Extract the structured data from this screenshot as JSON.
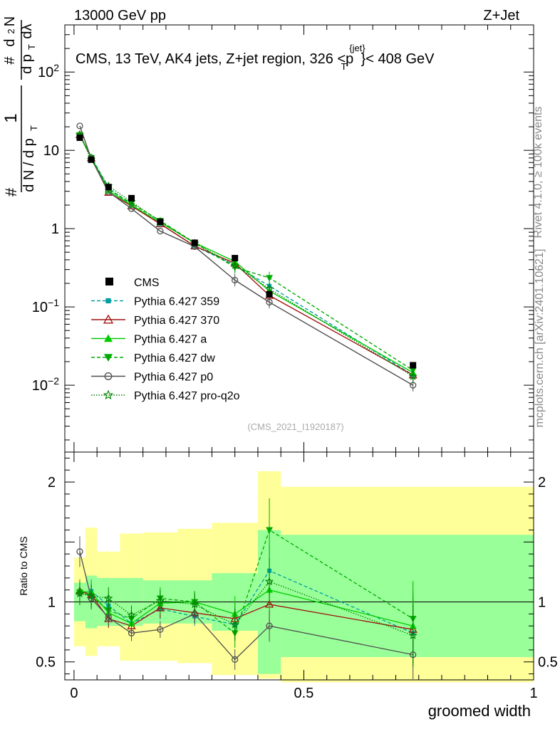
{
  "header": {
    "energy": "13000 GeV pp",
    "process": "Z+Jet"
  },
  "side": {
    "rivet": "Rivet 4.1.0, ≥ 100k events",
    "mcplots": "mcplots.cern.ch [arXiv:2401.10621]"
  },
  "chart_data": [
    {
      "type": "scatter",
      "title_prefix": "CMS, 13 TeV, AK4 jets, Z+jet region, 326 <p",
      "title_sup": "{jet}",
      "title_sub": "T",
      "title_suffix": "}< 408 GeV",
      "ylabel": "1/dN/dpT · dN²/dpT dλ",
      "yscale": "log",
      "ylim": [
        0.0014,
        400
      ],
      "xlim": [
        -0.02,
        1.0
      ],
      "yticks": [
        {
          "v": 0.01,
          "base": "10",
          "exp": "−2"
        },
        {
          "v": 0.1,
          "base": "10",
          "exp": "−1"
        },
        {
          "v": 1,
          "base": "1",
          "exp": ""
        },
        {
          "v": 10,
          "base": "10",
          "exp": ""
        },
        {
          "v": 100,
          "base": "10",
          "exp": "2"
        }
      ],
      "watermark": "(CMS_2021_I1920187)",
      "x": [
        0.0125,
        0.0375,
        0.075,
        0.125,
        0.1875,
        0.2625,
        0.35,
        0.425,
        0.7375
      ],
      "data": {
        "name": "CMS",
        "values": [
          14.5,
          7.6,
          3.4,
          2.45,
          1.22,
          0.66,
          0.42,
          0.145,
          0.018
        ]
      },
      "series": [
        {
          "name": "Pythia 6.427 359",
          "color": "#00a0a0",
          "dash": "5,3",
          "marker": "square",
          "values": [
            15.5,
            8.3,
            3.3,
            2.0,
            1.15,
            0.6,
            0.34,
            0.185,
            0.0135
          ]
        },
        {
          "name": "Pythia 6.427 370",
          "color": "#a01010",
          "dash": "",
          "marker": "triangle-open",
          "values": [
            15.8,
            8.0,
            2.9,
            1.95,
            1.15,
            0.6,
            0.36,
            0.14,
            0.0135
          ]
        },
        {
          "name": "Pythia 6.427 a",
          "color": "#00cc00",
          "dash": "",
          "marker": "triangle",
          "values": [
            15.8,
            8.2,
            3.05,
            2.0,
            1.2,
            0.66,
            0.38,
            0.16,
            0.0145
          ]
        },
        {
          "name": "Pythia 6.427 dw",
          "color": "#00aa00",
          "dash": "5,3",
          "marker": "triangle-down",
          "values": [
            15.7,
            8.0,
            3.2,
            2.1,
            1.26,
            0.66,
            0.32,
            0.235,
            0.0155
          ]
        },
        {
          "name": "Pythia 6.427 p0",
          "color": "#505050",
          "dash": "",
          "marker": "circle-open",
          "values": [
            20.5,
            7.8,
            2.95,
            1.8,
            0.93,
            0.59,
            0.22,
            0.115,
            0.01
          ]
        },
        {
          "name": "Pythia 6.427 pro-q2o",
          "color": "#008000",
          "dash": "1.5,2",
          "marker": "star-open",
          "values": [
            15.8,
            7.6,
            3.5,
            2.2,
            1.24,
            0.65,
            0.34,
            0.17,
            0.013
          ]
        }
      ]
    },
    {
      "type": "ratio",
      "ylabel": "Ratio to CMS",
      "xlabel": "groomed width",
      "ylim": [
        0.35,
        2.25
      ],
      "yticks": [
        0.5,
        1,
        2
      ],
      "xticks": [
        0,
        0.5,
        1
      ],
      "bins": [
        0,
        0.025,
        0.05,
        0.1,
        0.15,
        0.225,
        0.3,
        0.4,
        0.45,
        1.0
      ],
      "stat_band": [
        [
          0.84,
          1.16
        ],
        [
          0.78,
          1.22
        ],
        [
          0.8,
          1.2
        ],
        [
          0.8,
          1.2
        ],
        [
          0.82,
          1.18
        ],
        [
          0.82,
          1.18
        ],
        [
          0.76,
          1.24
        ],
        [
          0.4,
          1.6
        ],
        [
          0.54,
          1.56
        ]
      ],
      "total_band": [
        [
          0.63,
          1.37
        ],
        [
          0.55,
          1.62
        ],
        [
          0.63,
          1.42
        ],
        [
          0.51,
          1.57
        ],
        [
          0.51,
          1.58
        ],
        [
          0.49,
          1.61
        ],
        [
          0.39,
          1.66
        ],
        [
          0.36,
          2.09
        ],
        [
          0.33,
          1.96
        ]
      ],
      "series_ratios": [
        [
          1.07,
          1.09,
          0.97,
          0.82,
          0.94,
          0.88,
          0.81,
          1.26,
          0.74
        ],
        [
          1.09,
          1.06,
          0.86,
          0.8,
          0.95,
          0.91,
          0.86,
          0.98,
          0.77
        ],
        [
          1.09,
          1.08,
          0.91,
          0.82,
          0.99,
          1.0,
          0.9,
          1.1,
          0.8
        ],
        [
          1.08,
          1.05,
          0.93,
          0.86,
          1.03,
          1.0,
          0.74,
          1.6,
          0.86
        ],
        [
          1.42,
          1.03,
          0.87,
          0.74,
          0.77,
          0.9,
          0.52,
          0.8,
          0.56
        ],
        [
          1.07,
          1.05,
          1.03,
          0.89,
          1.01,
          0.98,
          0.81,
          1.17,
          0.72
        ]
      ]
    }
  ]
}
